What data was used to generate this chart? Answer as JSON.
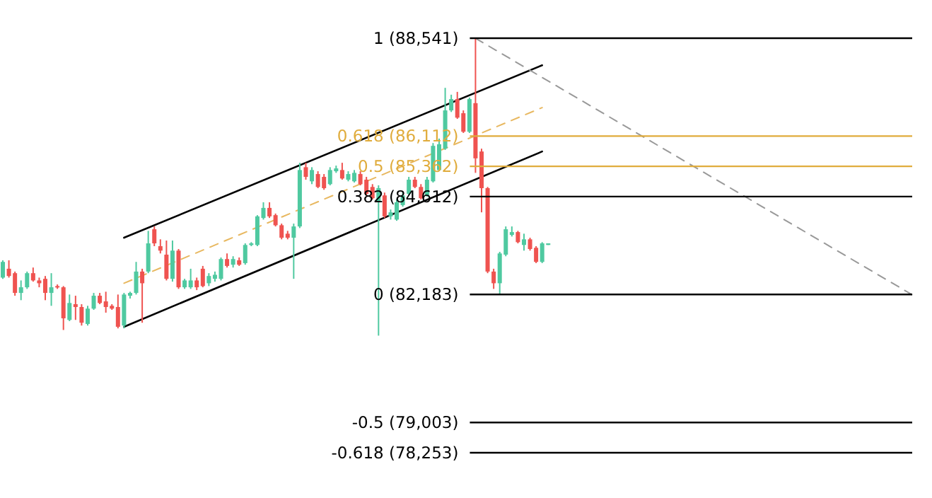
{
  "chart_data": {
    "type": "candlestick",
    "ylim": [
      77130,
      89490
    ],
    "tick_labels": false,
    "categories": [
      null,
      null,
      null,
      null,
      null,
      null,
      null,
      null,
      null,
      null,
      null,
      null,
      null,
      null,
      null,
      null,
      null,
      null,
      null,
      null,
      null,
      null,
      null,
      null,
      null,
      null,
      null,
      null,
      null,
      null,
      null,
      null,
      null,
      null,
      null,
      null,
      null,
      null,
      null,
      null,
      null,
      null,
      null,
      null,
      null,
      null,
      null,
      null,
      null,
      null,
      null,
      null,
      null,
      null,
      null,
      null,
      null,
      null,
      null,
      null,
      null,
      null,
      null,
      null,
      null,
      null,
      null,
      null,
      null,
      null,
      null,
      null,
      null,
      null,
      null,
      null,
      null,
      null,
      null,
      null,
      null,
      null,
      null,
      null,
      null,
      null,
      null,
      null,
      null,
      null,
      null,
      null,
      null,
      null,
      null,
      null,
      null,
      null,
      null,
      null,
      null,
      null,
      null,
      null,
      null,
      null,
      null,
      null,
      null,
      null,
      null,
      null,
      null,
      null,
      null,
      null,
      null,
      null,
      null,
      null,
      null,
      null,
      null,
      null,
      null,
      null,
      null,
      null,
      null,
      null,
      null,
      null,
      null,
      null,
      null,
      null,
      null,
      null,
      null,
      null,
      null,
      null,
      null,
      null,
      null,
      null,
      null,
      null,
      null,
      null,
      null,
      null
    ],
    "ohlc": [
      [
        82600,
        83030,
        82570,
        82990
      ],
      [
        82820,
        83030,
        82600,
        82640
      ],
      [
        82710,
        82750,
        82150,
        82220
      ],
      [
        82220,
        82530,
        82040,
        82360
      ],
      [
        82360,
        82750,
        82320,
        82710
      ],
      [
        82710,
        82850,
        82500,
        82530
      ],
      [
        82530,
        82600,
        82360,
        82460
      ],
      [
        82570,
        82640,
        82040,
        82220
      ],
      [
        82220,
        82710,
        81900,
        82360
      ],
      [
        82390,
        82430,
        82320,
        82360
      ],
      [
        82360,
        82390,
        81300,
        81590
      ],
      [
        81550,
        82180,
        81520,
        81970
      ],
      [
        81940,
        82150,
        81550,
        81870
      ],
      [
        81870,
        81940,
        81410,
        81480
      ],
      [
        81450,
        81900,
        81410,
        81830
      ],
      [
        81830,
        82220,
        81800,
        82150
      ],
      [
        82150,
        82220,
        81940,
        81970
      ],
      [
        82010,
        82250,
        81730,
        81870
      ],
      [
        81900,
        81940,
        81800,
        81830
      ],
      [
        81870,
        82180,
        81340,
        81380
      ],
      [
        81410,
        82220,
        81340,
        82180
      ],
      [
        82150,
        82250,
        82080,
        82220
      ],
      [
        82220,
        82990,
        82180,
        82750
      ],
      [
        82750,
        82820,
        81480,
        82460
      ],
      [
        82750,
        83760,
        82710,
        83450
      ],
      [
        83800,
        83870,
        83380,
        83450
      ],
      [
        83380,
        83550,
        83200,
        83270
      ],
      [
        83170,
        83520,
        82530,
        82570
      ],
      [
        82570,
        83520,
        82500,
        83270
      ],
      [
        83270,
        83310,
        82320,
        82360
      ],
      [
        82360,
        82570,
        82320,
        82530
      ],
      [
        82360,
        82820,
        82320,
        82530
      ],
      [
        82530,
        82600,
        82290,
        82360
      ],
      [
        82820,
        82890,
        82360,
        82390
      ],
      [
        82460,
        82710,
        82390,
        82640
      ],
      [
        82570,
        82750,
        82500,
        82670
      ],
      [
        82570,
        83100,
        82530,
        83060
      ],
      [
        83060,
        83200,
        82850,
        82890
      ],
      [
        82920,
        83130,
        82850,
        83060
      ],
      [
        83030,
        83100,
        82890,
        82920
      ],
      [
        82960,
        83450,
        82920,
        83410
      ],
      [
        83410,
        83480,
        83380,
        83450
      ],
      [
        83410,
        84150,
        83380,
        84120
      ],
      [
        84080,
        84470,
        84040,
        84330
      ],
      [
        84330,
        84470,
        84080,
        84120
      ],
      [
        84150,
        84190,
        83870,
        83900
      ],
      [
        83900,
        83940,
        83550,
        83590
      ],
      [
        83690,
        83760,
        83550,
        83590
      ],
      [
        83590,
        83940,
        82570,
        83870
      ],
      [
        83870,
        85450,
        83830,
        85270
      ],
      [
        85340,
        85450,
        85030,
        85100
      ],
      [
        84990,
        85340,
        84920,
        85270
      ],
      [
        85170,
        85240,
        84820,
        84850
      ],
      [
        85100,
        85170,
        84780,
        84820
      ],
      [
        84920,
        85340,
        84890,
        85270
      ],
      [
        85240,
        85380,
        85200,
        85310
      ],
      [
        85270,
        85450,
        85030,
        85060
      ],
      [
        85030,
        85240,
        84990,
        85170
      ],
      [
        84990,
        85270,
        84960,
        85200
      ],
      [
        85170,
        85240,
        84890,
        84920
      ],
      [
        85030,
        85100,
        84640,
        84680
      ],
      [
        84850,
        84920,
        84540,
        84570
      ],
      [
        84470,
        84890,
        81160,
        84820
      ],
      [
        84640,
        84710,
        84080,
        84120
      ],
      [
        84120,
        84290,
        84040,
        84220
      ],
      [
        84040,
        84540,
        84010,
        84470
      ],
      [
        84400,
        84710,
        84360,
        84640
      ],
      [
        84680,
        85100,
        84640,
        85030
      ],
      [
        85030,
        85100,
        84820,
        84850
      ],
      [
        84850,
        84920,
        84540,
        84570
      ],
      [
        84640,
        85100,
        84610,
        85030
      ],
      [
        84990,
        85940,
        84960,
        85870
      ],
      [
        85270,
        86050,
        85240,
        85910
      ],
      [
        85800,
        87310,
        85770,
        86750
      ],
      [
        86750,
        87140,
        86710,
        87030
      ],
      [
        87030,
        87210,
        86540,
        86570
      ],
      [
        86680,
        86750,
        86190,
        86220
      ],
      [
        86220,
        87070,
        86190,
        87030
      ],
      [
        86930,
        88541,
        85200,
        85560
      ],
      [
        85730,
        85800,
        84220,
        84820
      ],
      [
        84820,
        84850,
        82710,
        82750
      ],
      [
        82750,
        82820,
        82320,
        82460
      ],
      [
        82460,
        83240,
        82183,
        83200
      ],
      [
        83170,
        83870,
        83130,
        83800
      ],
      [
        83660,
        83870,
        83620,
        83730
      ],
      [
        83730,
        83760,
        83450,
        83480
      ],
      [
        83410,
        83690,
        83270,
        83550
      ],
      [
        83550,
        83590,
        83270,
        83310
      ],
      [
        83340,
        83380,
        82960,
        82990
      ],
      [
        82990,
        83480,
        82960,
        83450
      ],
      [
        83410,
        83450,
        83410,
        83450
      ],
      null,
      null,
      null,
      null,
      null,
      null,
      null,
      null,
      null,
      null,
      null,
      null,
      null,
      null,
      null,
      null,
      null,
      null,
      null,
      null,
      null,
      null,
      null,
      null,
      null,
      null,
      null,
      null,
      null,
      null,
      null,
      null,
      null,
      null,
      null,
      null,
      null,
      null,
      null,
      null,
      null,
      null,
      null,
      null,
      null,
      null,
      null,
      null,
      null,
      null,
      null,
      null,
      null,
      null,
      null,
      null,
      null,
      null,
      null,
      null,
      null
    ],
    "colors": [
      "#4fc9a0",
      "#ef5350",
      "#ef5350",
      "#4fc9a0",
      "#4fc9a0",
      "#ef5350",
      "#ef5350",
      "#ef5350",
      "#4fc9a0",
      "#ef5350",
      "#ef5350",
      "#4fc9a0",
      "#ef5350",
      "#ef5350",
      "#4fc9a0",
      "#4fc9a0",
      "#ef5350",
      "#ef5350",
      "#ef5350",
      "#ef5350",
      "#4fc9a0",
      "#4fc9a0",
      "#4fc9a0",
      "#ef5350",
      "#4fc9a0",
      "#ef5350",
      "#ef5350",
      "#ef5350",
      "#4fc9a0",
      "#ef5350",
      "#4fc9a0",
      "#4fc9a0",
      "#ef5350",
      "#ef5350",
      "#4fc9a0",
      "#4fc9a0",
      "#4fc9a0",
      "#ef5350",
      "#4fc9a0",
      "#ef5350",
      "#4fc9a0",
      "#4fc9a0",
      "#4fc9a0",
      "#4fc9a0",
      "#ef5350",
      "#ef5350",
      "#ef5350",
      "#ef5350",
      "#4fc9a0",
      "#4fc9a0",
      "#ef5350",
      "#4fc9a0",
      "#ef5350",
      "#ef5350",
      "#4fc9a0",
      "#4fc9a0",
      "#ef5350",
      "#4fc9a0",
      "#4fc9a0",
      "#ef5350",
      "#ef5350",
      "#ef5350",
      "#4fc9a0",
      "#ef5350",
      "#4fc9a0",
      "#4fc9a0",
      "#4fc9a0",
      "#4fc9a0",
      "#ef5350",
      "#ef5350",
      "#4fc9a0",
      "#4fc9a0",
      "#4fc9a0",
      "#4fc9a0",
      "#4fc9a0",
      "#ef5350",
      "#ef5350",
      "#4fc9a0",
      "#ef5350",
      "#ef5350",
      "#ef5350",
      "#ef5350",
      "#4fc9a0",
      "#4fc9a0",
      "#4fc9a0",
      "#ef5350",
      "#4fc9a0",
      "#ef5350",
      "#ef5350",
      "#4fc9a0",
      "#4fc9a0",
      null,
      null,
      null,
      null,
      null,
      null,
      null,
      null,
      null,
      null,
      null,
      null,
      null,
      null,
      null,
      null,
      null,
      null,
      null,
      null,
      null,
      null,
      null,
      null,
      null,
      null,
      null,
      null,
      null,
      null,
      null,
      null,
      null,
      null,
      null,
      null,
      null,
      null,
      null,
      null,
      null,
      null,
      null,
      null,
      null,
      null,
      null,
      null,
      null,
      null,
      null,
      null,
      null,
      null,
      null,
      null,
      null,
      null,
      null,
      null,
      null
    ],
    "series": [
      {
        "type": "line",
        "color": "#000000",
        "line_style": "solid",
        "values": [
          null,
          null,
          null,
          null,
          null,
          null,
          null,
          null,
          null,
          null,
          null,
          null,
          null,
          null,
          null,
          null,
          null,
          null,
          null,
          null,
          83590,
          null,
          null,
          null,
          null,
          null,
          null,
          null,
          null,
          null,
          null,
          null,
          null,
          null,
          null,
          null,
          null,
          null,
          null,
          null,
          null,
          null,
          null,
          null,
          null,
          null,
          null,
          null,
          null,
          null,
          null,
          null,
          null,
          null,
          null,
          null,
          null,
          null,
          null,
          null,
          null,
          null,
          null,
          null,
          null,
          null,
          null,
          null,
          null,
          null,
          null,
          null,
          null,
          null,
          null,
          null,
          null,
          null,
          null,
          null,
          null,
          null,
          null,
          null,
          null,
          null,
          null,
          null,
          null,
          87870,
          null,
          null,
          null,
          null,
          null,
          null,
          null,
          null,
          null,
          null,
          null,
          null,
          null,
          null,
          null,
          null,
          null,
          null,
          null,
          null,
          null,
          null,
          null,
          null,
          null,
          null,
          null,
          null,
          null,
          null,
          null,
          null,
          null,
          null,
          null,
          null,
          null,
          null,
          null,
          null,
          null,
          null,
          null,
          null,
          null,
          null,
          null,
          null,
          null,
          null,
          null,
          null,
          null,
          null,
          null,
          null,
          null,
          null,
          null,
          null,
          null,
          null
        ]
      },
      {
        "type": "line",
        "color": "#000000",
        "line_style": "solid",
        "values": [
          null,
          null,
          null,
          null,
          null,
          null,
          null,
          null,
          null,
          null,
          null,
          null,
          null,
          null,
          null,
          null,
          null,
          null,
          null,
          null,
          81380,
          null,
          null,
          null,
          null,
          null,
          null,
          null,
          null,
          null,
          null,
          null,
          null,
          null,
          null,
          null,
          null,
          null,
          null,
          null,
          null,
          null,
          null,
          null,
          null,
          null,
          null,
          null,
          null,
          null,
          null,
          null,
          null,
          null,
          null,
          null,
          null,
          null,
          null,
          null,
          null,
          null,
          null,
          null,
          null,
          null,
          null,
          null,
          null,
          null,
          null,
          null,
          null,
          null,
          null,
          null,
          null,
          null,
          null,
          null,
          null,
          null,
          null,
          null,
          null,
          null,
          null,
          null,
          null,
          85730,
          null,
          null,
          null,
          null,
          null,
          null,
          null,
          null,
          null,
          null,
          null,
          null,
          null,
          null,
          null,
          null,
          null,
          null,
          null,
          null,
          null,
          null,
          null,
          null,
          null,
          null,
          null,
          null,
          null,
          null,
          null,
          null,
          null,
          null,
          null,
          null,
          null,
          null,
          null,
          null,
          null,
          null,
          null,
          null,
          null,
          null,
          null,
          null,
          null,
          null,
          null,
          null,
          null,
          null,
          null,
          null,
          null,
          null,
          null,
          null,
          null,
          null
        ]
      },
      {
        "type": "line",
        "color": "#e8b860",
        "line_style": "dashed",
        "values": [
          null,
          null,
          null,
          null,
          null,
          null,
          null,
          null,
          null,
          null,
          null,
          null,
          null,
          null,
          null,
          null,
          null,
          null,
          null,
          null,
          82460,
          null,
          null,
          null,
          null,
          null,
          null,
          null,
          null,
          null,
          null,
          null,
          null,
          null,
          null,
          null,
          null,
          null,
          null,
          null,
          null,
          null,
          null,
          null,
          null,
          null,
          null,
          null,
          null,
          null,
          null,
          null,
          null,
          null,
          null,
          null,
          null,
          null,
          null,
          null,
          null,
          null,
          null,
          null,
          null,
          null,
          null,
          null,
          null,
          null,
          null,
          null,
          null,
          null,
          null,
          null,
          null,
          null,
          null,
          null,
          null,
          null,
          null,
          null,
          null,
          null,
          null,
          null,
          null,
          86820,
          null,
          null,
          null,
          null,
          null,
          null,
          null,
          null,
          null,
          null,
          null,
          null,
          null,
          null,
          null,
          null,
          null,
          null,
          null,
          null,
          null,
          null,
          null,
          null,
          null,
          null,
          null,
          null,
          null,
          null,
          null,
          null,
          null,
          null,
          null,
          null,
          null,
          null,
          null,
          null,
          null,
          null,
          null,
          null,
          null,
          null,
          null,
          null,
          null,
          null,
          null,
          null,
          null,
          null,
          null,
          null,
          null,
          null,
          null,
          null,
          null,
          null
        ]
      },
      {
        "type": "line",
        "color": "#999999",
        "line_style": "dashed",
        "values": [
          null,
          null,
          null,
          null,
          null,
          null,
          null,
          null,
          null,
          null,
          null,
          null,
          null,
          null,
          null,
          null,
          null,
          null,
          null,
          null,
          null,
          null,
          null,
          null,
          null,
          null,
          null,
          null,
          null,
          null,
          null,
          null,
          null,
          null,
          null,
          null,
          null,
          null,
          null,
          null,
          null,
          null,
          null,
          null,
          null,
          null,
          null,
          null,
          null,
          null,
          null,
          null,
          null,
          null,
          null,
          null,
          null,
          null,
          null,
          null,
          null,
          null,
          null,
          null,
          null,
          null,
          null,
          null,
          null,
          null,
          null,
          null,
          null,
          null,
          null,
          null,
          null,
          null,
          88540,
          null,
          null,
          null,
          null,
          null,
          null,
          null,
          null,
          null,
          null,
          null,
          null,
          null,
          null,
          null,
          null,
          null,
          null,
          null,
          null,
          null,
          null,
          null,
          null,
          null,
          null,
          null,
          null,
          null,
          null,
          null,
          null,
          null,
          null,
          null,
          null,
          null,
          null,
          null,
          null,
          null,
          null,
          null,
          null,
          null,
          null,
          null,
          null,
          null,
          null,
          null,
          null,
          null,
          null,
          null,
          null,
          null,
          null,
          null,
          null,
          null,
          null,
          null,
          null,
          null,
          null,
          null,
          null,
          null,
          null,
          null,
          82180,
          null
        ]
      }
    ],
    "ref_lines": [
      {
        "axis": "y",
        "value": 88541,
        "label": "1 (88,541)",
        "color": "#000000"
      },
      {
        "axis": "y",
        "value": 86112,
        "label": "0.618 (86,112)",
        "color": "#e0ac3c"
      },
      {
        "axis": "y",
        "value": 85362,
        "label": "0.5 (85,362)",
        "color": "#e0ac3c"
      },
      {
        "axis": "y",
        "value": 84612,
        "label": "0.382 (84,612)",
        "color": "#000000"
      },
      {
        "axis": "y",
        "value": 82183,
        "label": "0 (82,183)",
        "color": "#000000"
      },
      {
        "axis": "y",
        "value": 79003,
        "label": "-0.5 (79,003)",
        "color": "#000000"
      },
      {
        "axis": "y",
        "value": 78253,
        "label": "-0.618 (78,253)",
        "color": "#000000"
      }
    ]
  }
}
